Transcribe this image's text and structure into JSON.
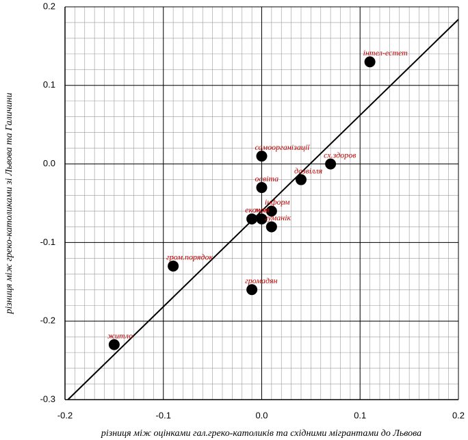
{
  "chart_data": {
    "type": "scatter",
    "x_label": "різниця між оцінками гал.греко-католиків та східними мігрантами до Львова",
    "y_label": "різниця між греко-католиками  зі Львова та Галичини",
    "points": [
      {
        "label": "інтел-естет",
        "x": 0.11,
        "y": 0.13
      },
      {
        "label": "самоорганізації",
        "x": 0.0,
        "y": 0.01
      },
      {
        "label": "сх.здоров",
        "x": 0.07,
        "y": 0.0
      },
      {
        "label": "дозвілля",
        "x": 0.04,
        "y": -0.02
      },
      {
        "label": "освіта",
        "x": 0.0,
        "y": -0.03
      },
      {
        "label": "інформ",
        "x": 0.01,
        "y": -0.06
      },
      {
        "label": "економ",
        "x": -0.01,
        "y": -0.07
      },
      {
        "label": "мов",
        "x": 0.0,
        "y": -0.07
      },
      {
        "label": "гуманік",
        "x": 0.01,
        "y": -0.08
      },
      {
        "label": "гром.порядок",
        "x": -0.09,
        "y": -0.13
      },
      {
        "label": "громадян",
        "x": -0.01,
        "y": -0.16
      },
      {
        "label": "житло",
        "x": -0.15,
        "y": -0.23
      }
    ],
    "point_color": "#000000",
    "label_color": "#c00000",
    "fit_line": {
      "x": [
        -0.197,
        0.2
      ],
      "y": [
        -0.3,
        0.184
      ]
    },
    "xlim": [
      -0.2,
      0.2
    ],
    "ylim": [
      -0.3,
      0.2
    ],
    "xticks": [
      -0.2,
      -0.1,
      {
        "value": 0,
        "label": "0.0"
      },
      0.1,
      0.2
    ],
    "yticks": [
      -0.3,
      -0.2,
      -0.1,
      {
        "value": 0,
        "label": "0.0"
      },
      0.1,
      0.2
    ],
    "minor_grid": {
      "x": 0.01,
      "y": 0.02
    },
    "grid": true
  }
}
